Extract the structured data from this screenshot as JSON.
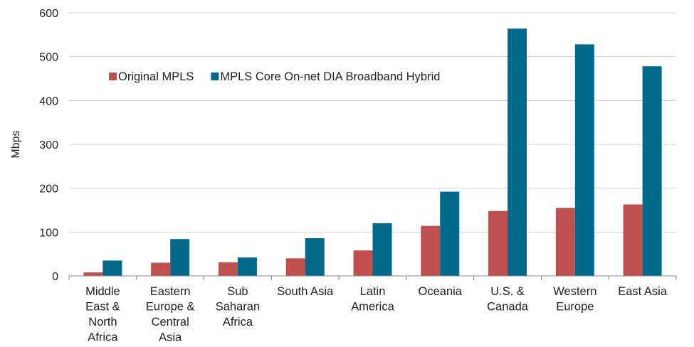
{
  "chart_data": {
    "type": "bar",
    "title": "",
    "xlabel": "",
    "ylabel": "Mbps",
    "ylim": [
      0,
      600
    ],
    "yticks": [
      0,
      100,
      200,
      300,
      400,
      500,
      600
    ],
    "grid": true,
    "legend_position": "upper-left",
    "categories": [
      [
        "Middle",
        "East &",
        "North",
        "Africa"
      ],
      [
        "Eastern",
        "Europe &",
        "Central",
        "Asia"
      ],
      [
        "Sub",
        "Saharan",
        "Africa"
      ],
      [
        "South Asia"
      ],
      [
        "Latin",
        "America"
      ],
      [
        "Oceania"
      ],
      [
        "U.S. &",
        "Canada"
      ],
      [
        "Western",
        "Europe"
      ],
      [
        "East Asia"
      ]
    ],
    "series": [
      {
        "name": "Original MPLS",
        "color": "#c0504d",
        "values": [
          8,
          30,
          31,
          40,
          58,
          114,
          148,
          155,
          163
        ]
      },
      {
        "name": "MPLS Core On-net DIA Broadband Hybrid",
        "color": "#00698c",
        "values": [
          35,
          84,
          42,
          86,
          120,
          192,
          564,
          528,
          478
        ]
      }
    ]
  }
}
